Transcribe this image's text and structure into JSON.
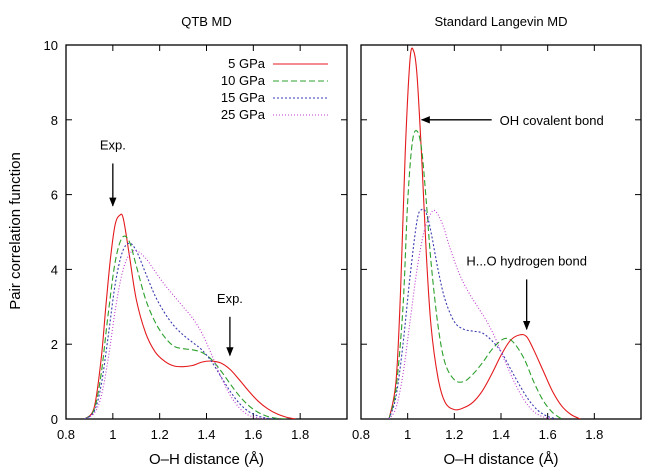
{
  "ylabel": "Pair correlation function",
  "chart_data": [
    {
      "type": "line",
      "title": "QTB MD",
      "xlabel": "O–H distance (Å)",
      "ylabel": "Pair correlation function",
      "xlim": [
        0.8,
        2.0
      ],
      "ylim": [
        0,
        10
      ],
      "xticks": [
        "0.8",
        "1",
        "1.2",
        "1.4",
        "1.6",
        "1.8"
      ],
      "yticks": [
        "0",
        "2",
        "4",
        "6",
        "8",
        "10"
      ],
      "legend_position": "top-right",
      "series": [
        {
          "name": "5 GPa",
          "color": "#e41a1c",
          "dash": "solid",
          "x": [
            0.88,
            0.92,
            0.95,
            0.97,
            0.99,
            1.01,
            1.03,
            1.045,
            1.07,
            1.1,
            1.14,
            1.18,
            1.22,
            1.26,
            1.3,
            1.34,
            1.38,
            1.42,
            1.46,
            1.5,
            1.54,
            1.58,
            1.62,
            1.66,
            1.7,
            1.74,
            1.78
          ],
          "y": [
            0.0,
            0.3,
            1.6,
            3.0,
            4.3,
            5.2,
            5.45,
            5.35,
            4.4,
            3.2,
            2.3,
            1.8,
            1.55,
            1.42,
            1.4,
            1.43,
            1.52,
            1.55,
            1.5,
            1.33,
            1.05,
            0.75,
            0.48,
            0.28,
            0.14,
            0.05,
            0.0
          ]
        },
        {
          "name": "10 GPa",
          "color": "#2ca02c",
          "dash": "6,3",
          "x": [
            0.88,
            0.92,
            0.95,
            0.98,
            1.01,
            1.04,
            1.07,
            1.1,
            1.14,
            1.18,
            1.22,
            1.26,
            1.3,
            1.34,
            1.38,
            1.42,
            1.46,
            1.5,
            1.54,
            1.58,
            1.62,
            1.66,
            1.7,
            1.74
          ],
          "y": [
            0.0,
            0.25,
            1.2,
            2.8,
            4.2,
            4.85,
            4.75,
            4.1,
            3.2,
            2.6,
            2.2,
            1.95,
            1.88,
            1.85,
            1.78,
            1.6,
            1.3,
            0.95,
            0.62,
            0.36,
            0.18,
            0.07,
            0.02,
            0.0
          ]
        },
        {
          "name": "15 GPa",
          "color": "#3a3ab0",
          "dash": "2,2",
          "x": [
            0.88,
            0.92,
            0.95,
            0.98,
            1.01,
            1.04,
            1.07,
            1.1,
            1.14,
            1.18,
            1.22,
            1.26,
            1.3,
            1.34,
            1.38,
            1.42,
            1.46,
            1.5,
            1.54,
            1.58,
            1.62,
            1.66,
            1.7
          ],
          "y": [
            0.0,
            0.2,
            0.9,
            2.2,
            3.6,
            4.45,
            4.7,
            4.5,
            3.9,
            3.3,
            2.85,
            2.5,
            2.25,
            2.05,
            1.85,
            1.55,
            1.15,
            0.75,
            0.42,
            0.2,
            0.08,
            0.02,
            0.0
          ]
        },
        {
          "name": "25 GPa",
          "color": "#c03ad0",
          "dash": "1,2",
          "x": [
            0.88,
            0.92,
            0.95,
            0.98,
            1.01,
            1.04,
            1.07,
            1.1,
            1.14,
            1.18,
            1.22,
            1.26,
            1.3,
            1.34,
            1.38,
            1.42,
            1.46,
            1.5,
            1.54,
            1.58,
            1.62,
            1.66
          ],
          "y": [
            0.0,
            0.15,
            0.6,
            1.6,
            2.9,
            3.9,
            4.4,
            4.5,
            4.3,
            3.95,
            3.6,
            3.3,
            3.0,
            2.7,
            2.3,
            1.75,
            1.15,
            0.65,
            0.3,
            0.1,
            0.03,
            0.0
          ]
        }
      ],
      "annotations": [
        {
          "text": "Exp.",
          "arrow_to": [
            1.0,
            5.7
          ],
          "text_at": [
            1.0,
            7.1
          ]
        },
        {
          "text": "Exp.",
          "arrow_to": [
            1.5,
            1.7
          ],
          "text_at": [
            1.5,
            3.0
          ]
        }
      ]
    },
    {
      "type": "line",
      "title": "Standard Langevin MD",
      "xlabel": "O–H distance (Å)",
      "xlim": [
        0.8,
        2.0
      ],
      "ylim": [
        0,
        10
      ],
      "xticks": [
        "0.8",
        "1",
        "1.2",
        "1.4",
        "1.6",
        "1.8"
      ],
      "series": [
        {
          "name": "5 GPa",
          "color": "#e41a1c",
          "dash": "solid",
          "x": [
            0.92,
            0.95,
            0.97,
            0.99,
            1.01,
            1.025,
            1.04,
            1.06,
            1.08,
            1.1,
            1.13,
            1.16,
            1.2,
            1.24,
            1.28,
            1.32,
            1.36,
            1.4,
            1.44,
            1.48,
            1.51,
            1.54,
            1.58,
            1.62,
            1.66,
            1.7,
            1.74
          ],
          "y": [
            0.0,
            1.0,
            3.5,
            7.2,
            9.6,
            9.85,
            9.2,
            7.0,
            4.4,
            2.5,
            1.1,
            0.45,
            0.25,
            0.3,
            0.45,
            0.75,
            1.2,
            1.7,
            2.1,
            2.25,
            2.2,
            1.85,
            1.3,
            0.75,
            0.35,
            0.12,
            0.0
          ]
        },
        {
          "name": "10 GPa",
          "color": "#2ca02c",
          "dash": "6,3",
          "x": [
            0.92,
            0.95,
            0.98,
            1.0,
            1.02,
            1.04,
            1.06,
            1.08,
            1.1,
            1.13,
            1.16,
            1.2,
            1.24,
            1.28,
            1.32,
            1.36,
            1.4,
            1.43,
            1.46,
            1.5,
            1.54,
            1.58,
            1.62,
            1.66
          ],
          "y": [
            0.0,
            0.8,
            3.0,
            5.8,
            7.4,
            7.7,
            7.2,
            5.8,
            4.2,
            2.5,
            1.5,
            1.05,
            1.0,
            1.2,
            1.5,
            1.85,
            2.1,
            2.15,
            2.0,
            1.6,
            1.0,
            0.5,
            0.18,
            0.0
          ]
        },
        {
          "name": "15 GPa",
          "color": "#3a3ab0",
          "dash": "2,2",
          "x": [
            0.92,
            0.95,
            0.98,
            1.01,
            1.04,
            1.06,
            1.08,
            1.1,
            1.13,
            1.16,
            1.2,
            1.24,
            1.28,
            1.32,
            1.36,
            1.4,
            1.44,
            1.48,
            1.52,
            1.56,
            1.6,
            1.64
          ],
          "y": [
            0.0,
            0.6,
            2.0,
            3.8,
            5.3,
            5.6,
            5.5,
            5.0,
            4.0,
            3.2,
            2.6,
            2.4,
            2.35,
            2.3,
            2.1,
            1.8,
            1.35,
            0.9,
            0.5,
            0.22,
            0.07,
            0.0
          ]
        },
        {
          "name": "25 GPa",
          "color": "#c03ad0",
          "dash": "1,2",
          "x": [
            0.92,
            0.95,
            0.98,
            1.01,
            1.04,
            1.07,
            1.1,
            1.12,
            1.15,
            1.18,
            1.22,
            1.26,
            1.3,
            1.34,
            1.38,
            1.42,
            1.46,
            1.5,
            1.54,
            1.58,
            1.62
          ],
          "y": [
            0.0,
            0.3,
            1.2,
            2.6,
            4.0,
            5.0,
            5.5,
            5.55,
            5.2,
            4.6,
            3.9,
            3.4,
            3.0,
            2.6,
            2.1,
            1.5,
            0.95,
            0.5,
            0.2,
            0.06,
            0.0
          ]
        }
      ],
      "annotations": [
        {
          "text": "OH covalent bond",
          "arrow_to": [
            1.06,
            8.0
          ],
          "text_at": [
            1.36,
            8.0
          ]
        },
        {
          "text": "H...O hydrogen bond",
          "arrow_to": [
            1.51,
            2.4
          ],
          "text_at": [
            1.51,
            4.0
          ]
        }
      ]
    }
  ]
}
